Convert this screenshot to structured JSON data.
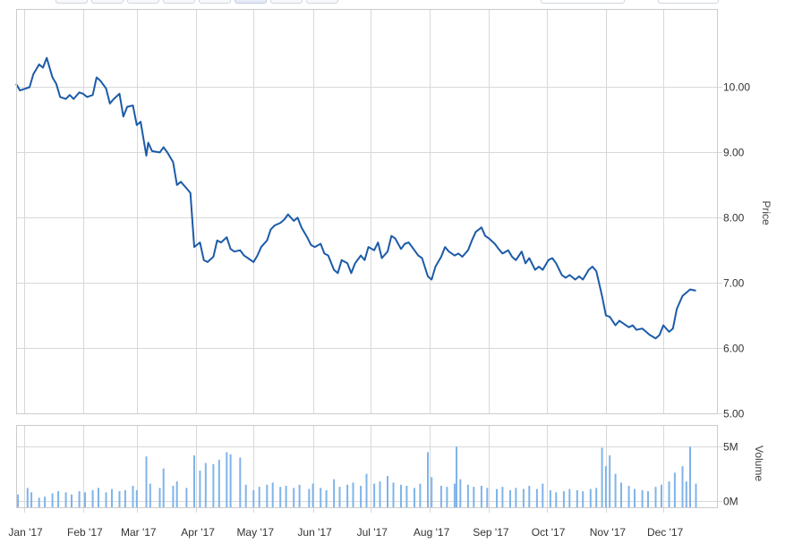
{
  "chart_data": {
    "type": "line",
    "ylabel": "Price",
    "volume_label": "Volume",
    "x_ticks": [
      "Jan '17",
      "Feb '17",
      "Mar '17",
      "Apr '17",
      "May '17",
      "Jun '17",
      "Jul '17",
      "Aug '17",
      "Sep '17",
      "Oct '17",
      "Nov '17",
      "Dec '17"
    ],
    "y_ticks": [
      "5.00",
      "6.00",
      "7.00",
      "8.00",
      "9.00",
      "10.00"
    ],
    "volume_ticks": [
      "0M",
      "5M"
    ],
    "ylim": [
      5.0,
      11.2
    ],
    "volume_ylim": [
      0,
      7
    ],
    "x_range": [
      "2016-12-28",
      "2017-12-29"
    ],
    "grid": true,
    "colors": {
      "line": "#1c5ba8",
      "volume": "#7fb4ea",
      "grid": "#d8d8d8",
      "panel_border": "#cccccc"
    },
    "series": [
      {
        "points": [
          [
            "2016-12-28",
            10.05
          ],
          [
            "2016-12-30",
            9.95
          ],
          [
            "2017-01-04",
            10.0
          ],
          [
            "2017-01-06",
            10.2
          ],
          [
            "2017-01-09",
            10.35
          ],
          [
            "2017-01-11",
            10.3
          ],
          [
            "2017-01-13",
            10.45
          ],
          [
            "2017-01-16",
            10.15
          ],
          [
            "2017-01-18",
            10.05
          ],
          [
            "2017-01-20",
            9.85
          ],
          [
            "2017-01-23",
            9.82
          ],
          [
            "2017-01-25",
            9.88
          ],
          [
            "2017-01-27",
            9.82
          ],
          [
            "2017-01-30",
            9.92
          ],
          [
            "2017-02-01",
            9.9
          ],
          [
            "2017-02-03",
            9.85
          ],
          [
            "2017-02-06",
            9.88
          ],
          [
            "2017-02-08",
            10.15
          ],
          [
            "2017-02-10",
            10.1
          ],
          [
            "2017-02-13",
            9.98
          ],
          [
            "2017-02-15",
            9.75
          ],
          [
            "2017-02-17",
            9.82
          ],
          [
            "2017-02-20",
            9.9
          ],
          [
            "2017-02-22",
            9.55
          ],
          [
            "2017-02-24",
            9.7
          ],
          [
            "2017-02-27",
            9.72
          ],
          [
            "2017-03-01",
            9.42
          ],
          [
            "2017-03-03",
            9.47
          ],
          [
            "2017-03-06",
            8.95
          ],
          [
            "2017-03-07",
            9.15
          ],
          [
            "2017-03-09",
            9.02
          ],
          [
            "2017-03-13",
            9.0
          ],
          [
            "2017-03-15",
            9.08
          ],
          [
            "2017-03-17",
            9.0
          ],
          [
            "2017-03-20",
            8.85
          ],
          [
            "2017-03-22",
            8.5
          ],
          [
            "2017-03-24",
            8.55
          ],
          [
            "2017-03-27",
            8.45
          ],
          [
            "2017-03-29",
            8.38
          ],
          [
            "2017-03-31",
            7.55
          ],
          [
            "2017-04-03",
            7.62
          ],
          [
            "2017-04-05",
            7.35
          ],
          [
            "2017-04-07",
            7.32
          ],
          [
            "2017-04-10",
            7.4
          ],
          [
            "2017-04-12",
            7.65
          ],
          [
            "2017-04-14",
            7.62
          ],
          [
            "2017-04-17",
            7.7
          ],
          [
            "2017-04-19",
            7.52
          ],
          [
            "2017-04-21",
            7.48
          ],
          [
            "2017-04-24",
            7.5
          ],
          [
            "2017-04-26",
            7.42
          ],
          [
            "2017-04-28",
            7.38
          ],
          [
            "2017-05-01",
            7.32
          ],
          [
            "2017-05-03",
            7.42
          ],
          [
            "2017-05-05",
            7.55
          ],
          [
            "2017-05-08",
            7.65
          ],
          [
            "2017-05-10",
            7.82
          ],
          [
            "2017-05-12",
            7.88
          ],
          [
            "2017-05-15",
            7.92
          ],
          [
            "2017-05-17",
            7.97
          ],
          [
            "2017-05-19",
            8.05
          ],
          [
            "2017-05-22",
            7.95
          ],
          [
            "2017-05-24",
            8.0
          ],
          [
            "2017-05-26",
            7.85
          ],
          [
            "2017-05-29",
            7.7
          ],
          [
            "2017-05-31",
            7.58
          ],
          [
            "2017-06-02",
            7.55
          ],
          [
            "2017-06-05",
            7.6
          ],
          [
            "2017-06-07",
            7.45
          ],
          [
            "2017-06-09",
            7.42
          ],
          [
            "2017-06-12",
            7.2
          ],
          [
            "2017-06-14",
            7.15
          ],
          [
            "2017-06-16",
            7.35
          ],
          [
            "2017-06-19",
            7.3
          ],
          [
            "2017-06-21",
            7.15
          ],
          [
            "2017-06-23",
            7.3
          ],
          [
            "2017-06-26",
            7.42
          ],
          [
            "2017-06-28",
            7.35
          ],
          [
            "2017-06-30",
            7.55
          ],
          [
            "2017-07-03",
            7.5
          ],
          [
            "2017-07-05",
            7.62
          ],
          [
            "2017-07-07",
            7.38
          ],
          [
            "2017-07-10",
            7.48
          ],
          [
            "2017-07-12",
            7.72
          ],
          [
            "2017-07-14",
            7.68
          ],
          [
            "2017-07-17",
            7.52
          ],
          [
            "2017-07-19",
            7.6
          ],
          [
            "2017-07-21",
            7.62
          ],
          [
            "2017-07-24",
            7.5
          ],
          [
            "2017-07-26",
            7.42
          ],
          [
            "2017-07-28",
            7.38
          ],
          [
            "2017-07-31",
            7.1
          ],
          [
            "2017-08-02",
            7.05
          ],
          [
            "2017-08-04",
            7.25
          ],
          [
            "2017-08-07",
            7.4
          ],
          [
            "2017-08-09",
            7.55
          ],
          [
            "2017-08-11",
            7.48
          ],
          [
            "2017-08-14",
            7.42
          ],
          [
            "2017-08-16",
            7.45
          ],
          [
            "2017-08-18",
            7.4
          ],
          [
            "2017-08-21",
            7.5
          ],
          [
            "2017-08-23",
            7.65
          ],
          [
            "2017-08-25",
            7.78
          ],
          [
            "2017-08-28",
            7.85
          ],
          [
            "2017-08-30",
            7.72
          ],
          [
            "2017-09-01",
            7.68
          ],
          [
            "2017-09-04",
            7.6
          ],
          [
            "2017-09-06",
            7.52
          ],
          [
            "2017-09-08",
            7.45
          ],
          [
            "2017-09-11",
            7.5
          ],
          [
            "2017-09-13",
            7.4
          ],
          [
            "2017-09-15",
            7.35
          ],
          [
            "2017-09-18",
            7.48
          ],
          [
            "2017-09-20",
            7.3
          ],
          [
            "2017-09-22",
            7.38
          ],
          [
            "2017-09-25",
            7.2
          ],
          [
            "2017-09-27",
            7.25
          ],
          [
            "2017-09-29",
            7.2
          ],
          [
            "2017-10-02",
            7.35
          ],
          [
            "2017-10-04",
            7.38
          ],
          [
            "2017-10-06",
            7.3
          ],
          [
            "2017-10-09",
            7.12
          ],
          [
            "2017-10-11",
            7.08
          ],
          [
            "2017-10-13",
            7.12
          ],
          [
            "2017-10-16",
            7.05
          ],
          [
            "2017-10-18",
            7.1
          ],
          [
            "2017-10-20",
            7.05
          ],
          [
            "2017-10-23",
            7.2
          ],
          [
            "2017-10-25",
            7.25
          ],
          [
            "2017-10-27",
            7.18
          ],
          [
            "2017-10-30",
            6.8
          ],
          [
            "2017-11-01",
            6.5
          ],
          [
            "2017-11-03",
            6.48
          ],
          [
            "2017-11-06",
            6.35
          ],
          [
            "2017-11-08",
            6.42
          ],
          [
            "2017-11-10",
            6.38
          ],
          [
            "2017-11-13",
            6.32
          ],
          [
            "2017-11-15",
            6.35
          ],
          [
            "2017-11-17",
            6.28
          ],
          [
            "2017-11-20",
            6.3
          ],
          [
            "2017-11-22",
            6.25
          ],
          [
            "2017-11-24",
            6.2
          ],
          [
            "2017-11-27",
            6.15
          ],
          [
            "2017-11-29",
            6.2
          ],
          [
            "2017-12-01",
            6.35
          ],
          [
            "2017-12-04",
            6.25
          ],
          [
            "2017-12-06",
            6.3
          ],
          [
            "2017-12-08",
            6.6
          ],
          [
            "2017-12-11",
            6.8
          ],
          [
            "2017-12-13",
            6.85
          ],
          [
            "2017-12-15",
            6.9
          ],
          [
            "2017-12-18",
            6.88
          ]
        ]
      }
    ],
    "volume": [
      [
        "2016-12-29",
        0.6
      ],
      [
        "2017-01-03",
        1.2
      ],
      [
        "2017-01-05",
        0.8
      ],
      [
        "2017-01-09",
        0.3
      ],
      [
        "2017-01-12",
        0.4
      ],
      [
        "2017-01-16",
        0.7
      ],
      [
        "2017-01-19",
        0.9
      ],
      [
        "2017-01-23",
        0.8
      ],
      [
        "2017-01-26",
        0.6
      ],
      [
        "2017-01-30",
        0.9
      ],
      [
        "2017-02-02",
        0.8
      ],
      [
        "2017-02-06",
        1.0
      ],
      [
        "2017-02-09",
        1.2
      ],
      [
        "2017-02-13",
        0.8
      ],
      [
        "2017-02-16",
        1.1
      ],
      [
        "2017-02-20",
        0.9
      ],
      [
        "2017-02-23",
        1.0
      ],
      [
        "2017-02-27",
        1.4
      ],
      [
        "2017-03-01",
        1.0
      ],
      [
        "2017-03-06",
        4.1
      ],
      [
        "2017-03-08",
        1.6
      ],
      [
        "2017-03-13",
        1.2
      ],
      [
        "2017-03-15",
        3.0
      ],
      [
        "2017-03-20",
        1.4
      ],
      [
        "2017-03-22",
        1.8
      ],
      [
        "2017-03-27",
        1.2
      ],
      [
        "2017-03-31",
        4.2
      ],
      [
        "2017-04-03",
        2.8
      ],
      [
        "2017-04-06",
        3.5
      ],
      [
        "2017-04-10",
        3.4
      ],
      [
        "2017-04-13",
        3.8
      ],
      [
        "2017-04-17",
        4.5
      ],
      [
        "2017-04-19",
        4.3
      ],
      [
        "2017-04-24",
        4.0
      ],
      [
        "2017-04-27",
        1.5
      ],
      [
        "2017-05-01",
        1.0
      ],
      [
        "2017-05-04",
        1.3
      ],
      [
        "2017-05-08",
        1.5
      ],
      [
        "2017-05-11",
        1.7
      ],
      [
        "2017-05-15",
        1.3
      ],
      [
        "2017-05-18",
        1.4
      ],
      [
        "2017-05-22",
        1.2
      ],
      [
        "2017-05-25",
        1.5
      ],
      [
        "2017-05-30",
        1.1
      ],
      [
        "2017-06-01",
        1.6
      ],
      [
        "2017-06-05",
        1.2
      ],
      [
        "2017-06-08",
        1.0
      ],
      [
        "2017-06-12",
        2.0
      ],
      [
        "2017-06-15",
        1.3
      ],
      [
        "2017-06-19",
        1.5
      ],
      [
        "2017-06-22",
        1.7
      ],
      [
        "2017-06-26",
        1.4
      ],
      [
        "2017-06-29",
        2.5
      ],
      [
        "2017-07-03",
        1.6
      ],
      [
        "2017-07-06",
        1.8
      ],
      [
        "2017-07-10",
        2.3
      ],
      [
        "2017-07-13",
        1.7
      ],
      [
        "2017-07-17",
        1.5
      ],
      [
        "2017-07-20",
        1.4
      ],
      [
        "2017-07-24",
        1.2
      ],
      [
        "2017-07-27",
        1.6
      ],
      [
        "2017-07-31",
        4.5
      ],
      [
        "2017-08-02",
        2.2
      ],
      [
        "2017-08-07",
        1.4
      ],
      [
        "2017-08-10",
        1.3
      ],
      [
        "2017-08-14",
        1.6
      ],
      [
        "2017-08-15",
        5.0
      ],
      [
        "2017-08-17",
        2.0
      ],
      [
        "2017-08-21",
        1.5
      ],
      [
        "2017-08-24",
        1.3
      ],
      [
        "2017-08-28",
        1.4
      ],
      [
        "2017-08-31",
        1.2
      ],
      [
        "2017-09-05",
        1.1
      ],
      [
        "2017-09-08",
        1.3
      ],
      [
        "2017-09-12",
        1.0
      ],
      [
        "2017-09-15",
        1.2
      ],
      [
        "2017-09-19",
        1.1
      ],
      [
        "2017-09-22",
        1.4
      ],
      [
        "2017-09-26",
        1.1
      ],
      [
        "2017-09-29",
        1.6
      ],
      [
        "2017-10-03",
        1.0
      ],
      [
        "2017-10-06",
        0.8
      ],
      [
        "2017-10-10",
        0.9
      ],
      [
        "2017-10-13",
        1.1
      ],
      [
        "2017-10-17",
        1.0
      ],
      [
        "2017-10-20",
        0.9
      ],
      [
        "2017-10-24",
        1.1
      ],
      [
        "2017-10-27",
        1.2
      ],
      [
        "2017-10-30",
        4.9
      ],
      [
        "2017-11-01",
        3.2
      ],
      [
        "2017-11-03",
        4.2
      ],
      [
        "2017-11-06",
        2.5
      ],
      [
        "2017-11-09",
        1.7
      ],
      [
        "2017-11-13",
        1.4
      ],
      [
        "2017-11-16",
        1.1
      ],
      [
        "2017-11-20",
        1.0
      ],
      [
        "2017-11-23",
        0.9
      ],
      [
        "2017-11-27",
        1.3
      ],
      [
        "2017-11-30",
        1.5
      ],
      [
        "2017-12-04",
        1.8
      ],
      [
        "2017-12-07",
        2.6
      ],
      [
        "2017-12-11",
        3.2
      ],
      [
        "2017-12-13",
        1.8
      ],
      [
        "2017-12-15",
        5.0
      ],
      [
        "2017-12-18",
        1.6
      ]
    ]
  }
}
